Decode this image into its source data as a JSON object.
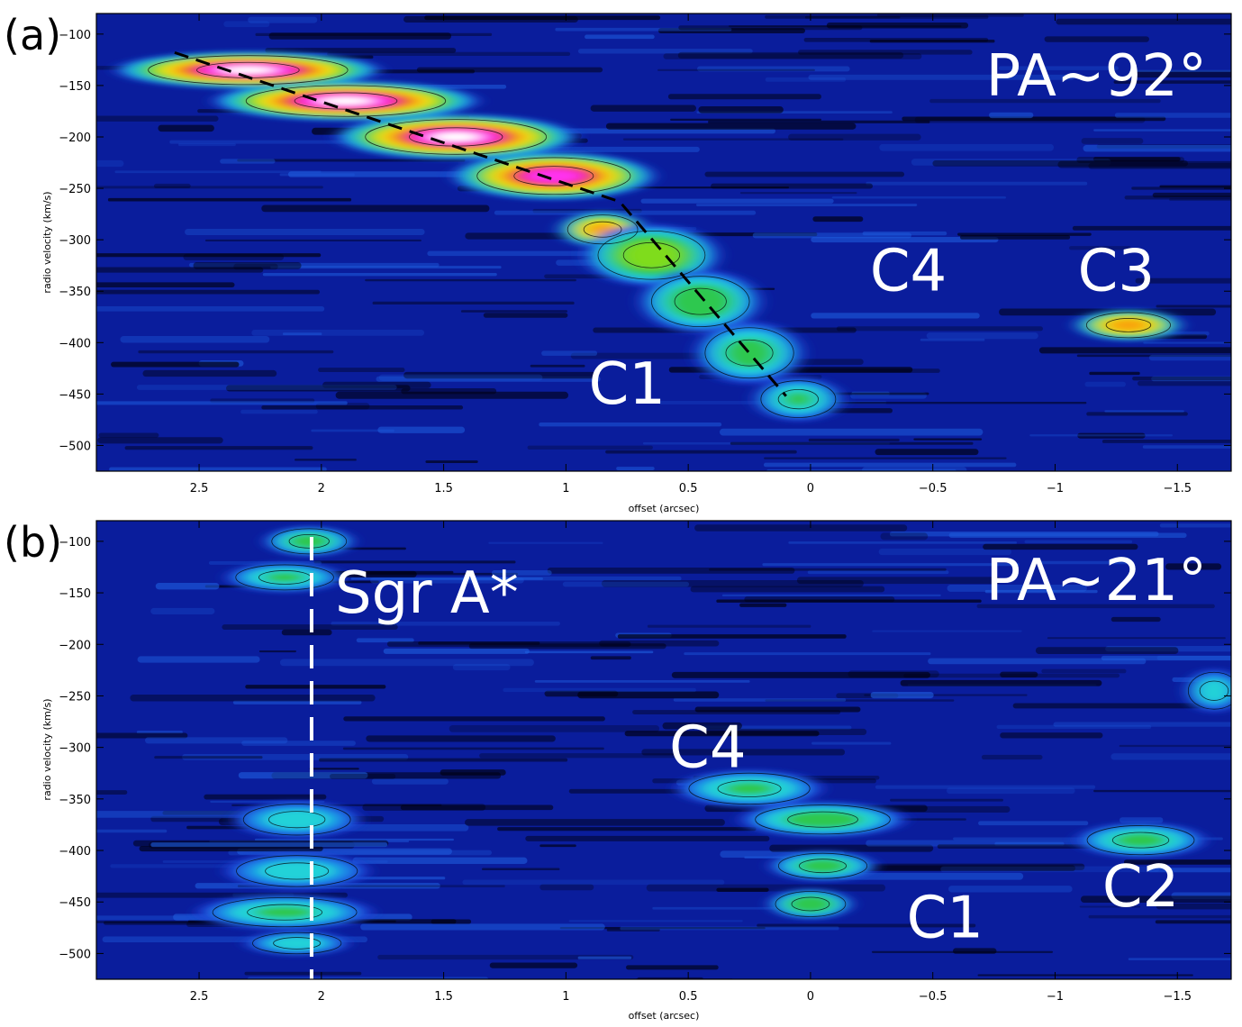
{
  "chart_data": [
    {
      "type": "heatmap",
      "panel_label": "(a)",
      "annotation": "PA~92°",
      "xlabel": "offset (arcsec)",
      "ylabel": "radio velocity (km/s)",
      "xlim": [
        2.92,
        -1.72
      ],
      "ylim": [
        -525,
        -80
      ],
      "x_ticks": [
        2.5,
        2,
        1.5,
        1,
        0.5,
        0,
        -0.5,
        -1,
        -1.5
      ],
      "x_tick_labels": [
        "2.5",
        "2",
        "1.5",
        "1",
        "0.5",
        "0",
        "-0.5",
        "-1",
        "-1.5"
      ],
      "y_ticks": [
        -100,
        -150,
        -200,
        -250,
        -300,
        -350,
        -400,
        -450,
        -500
      ],
      "y_tick_labels": [
        "-100",
        "-150",
        "-200",
        "-250",
        "-300",
        "-350",
        "-400",
        "-450",
        "-500"
      ],
      "features": [
        {
          "name": "C1",
          "x": 0.75,
          "y": -440
        },
        {
          "name": "C4",
          "x": -0.4,
          "y": -330
        },
        {
          "name": "C3",
          "x": -1.25,
          "y": -330
        }
      ],
      "dashed_line": [
        [
          2.6,
          -118
        ],
        [
          0.78,
          -263
        ],
        [
          0.1,
          -452
        ]
      ],
      "emission": [
        {
          "x": 2.3,
          "y": -135,
          "sx": 0.42,
          "sy": 14,
          "v": 1.0
        },
        {
          "x": 1.9,
          "y": -165,
          "sx": 0.42,
          "sy": 15,
          "v": 1.0
        },
        {
          "x": 1.45,
          "y": -200,
          "sx": 0.38,
          "sy": 17,
          "v": 1.0
        },
        {
          "x": 1.05,
          "y": -238,
          "sx": 0.32,
          "sy": 18,
          "v": 0.95
        },
        {
          "x": 0.85,
          "y": -290,
          "sx": 0.14,
          "sy": 14,
          "v": 0.78
        },
        {
          "x": 0.65,
          "y": -315,
          "sx": 0.22,
          "sy": 24,
          "v": 0.6
        },
        {
          "x": 0.45,
          "y": -360,
          "sx": 0.2,
          "sy": 25,
          "v": 0.5
        },
        {
          "x": 0.25,
          "y": -410,
          "sx": 0.18,
          "sy": 25,
          "v": 0.45
        },
        {
          "x": 0.05,
          "y": -455,
          "sx": 0.15,
          "sy": 18,
          "v": 0.4
        },
        {
          "x": -1.3,
          "y": -383,
          "sx": 0.17,
          "sy": 12,
          "v": 0.8
        }
      ]
    },
    {
      "type": "heatmap",
      "panel_label": "(b)",
      "annotation": "PA~21°",
      "marker_label": "Sgr A*",
      "marker_x": 2.04,
      "xlabel": "offset (arcsec)",
      "ylabel": "radio velocity (km/s)",
      "xlim": [
        2.92,
        -1.72
      ],
      "ylim": [
        -525,
        -80
      ],
      "x_ticks": [
        2.5,
        2,
        1.5,
        1,
        0.5,
        0,
        -0.5,
        -1,
        -1.5
      ],
      "x_tick_labels": [
        "2.5",
        "2",
        "1.5",
        "1",
        "0.5",
        "0",
        "-0.5",
        "-1",
        "-1.5"
      ],
      "y_ticks": [
        -100,
        -150,
        -200,
        -250,
        -300,
        -350,
        -400,
        -450,
        -500
      ],
      "y_tick_labels": [
        "-100",
        "-150",
        "-200",
        "-250",
        "-300",
        "-350",
        "-400",
        "-450",
        "-500"
      ],
      "features": [
        {
          "name": "C4",
          "x": 0.42,
          "y": -300
        },
        {
          "name": "C1",
          "x": -0.55,
          "y": -465
        },
        {
          "name": "C2",
          "x": -1.35,
          "y": -435
        }
      ],
      "emission": [
        {
          "x": 2.05,
          "y": -100,
          "sx": 0.15,
          "sy": 12,
          "v": 0.45
        },
        {
          "x": 2.15,
          "y": -135,
          "sx": 0.2,
          "sy": 12,
          "v": 0.4
        },
        {
          "x": 2.1,
          "y": -370,
          "sx": 0.22,
          "sy": 15,
          "v": 0.35
        },
        {
          "x": 2.1,
          "y": -420,
          "sx": 0.25,
          "sy": 15,
          "v": 0.35
        },
        {
          "x": 2.15,
          "y": -460,
          "sx": 0.3,
          "sy": 14,
          "v": 0.4
        },
        {
          "x": 2.1,
          "y": -490,
          "sx": 0.18,
          "sy": 10,
          "v": 0.35
        },
        {
          "x": 0.25,
          "y": -340,
          "sx": 0.25,
          "sy": 15,
          "v": 0.4
        },
        {
          "x": -0.05,
          "y": -370,
          "sx": 0.28,
          "sy": 14,
          "v": 0.45
        },
        {
          "x": -0.05,
          "y": -415,
          "sx": 0.18,
          "sy": 12,
          "v": 0.45
        },
        {
          "x": 0.0,
          "y": -452,
          "sx": 0.14,
          "sy": 12,
          "v": 0.5
        },
        {
          "x": -1.35,
          "y": -390,
          "sx": 0.22,
          "sy": 14,
          "v": 0.42
        },
        {
          "x": -1.65,
          "y": -245,
          "sx": 0.1,
          "sy": 18,
          "v": 0.35
        }
      ]
    }
  ]
}
